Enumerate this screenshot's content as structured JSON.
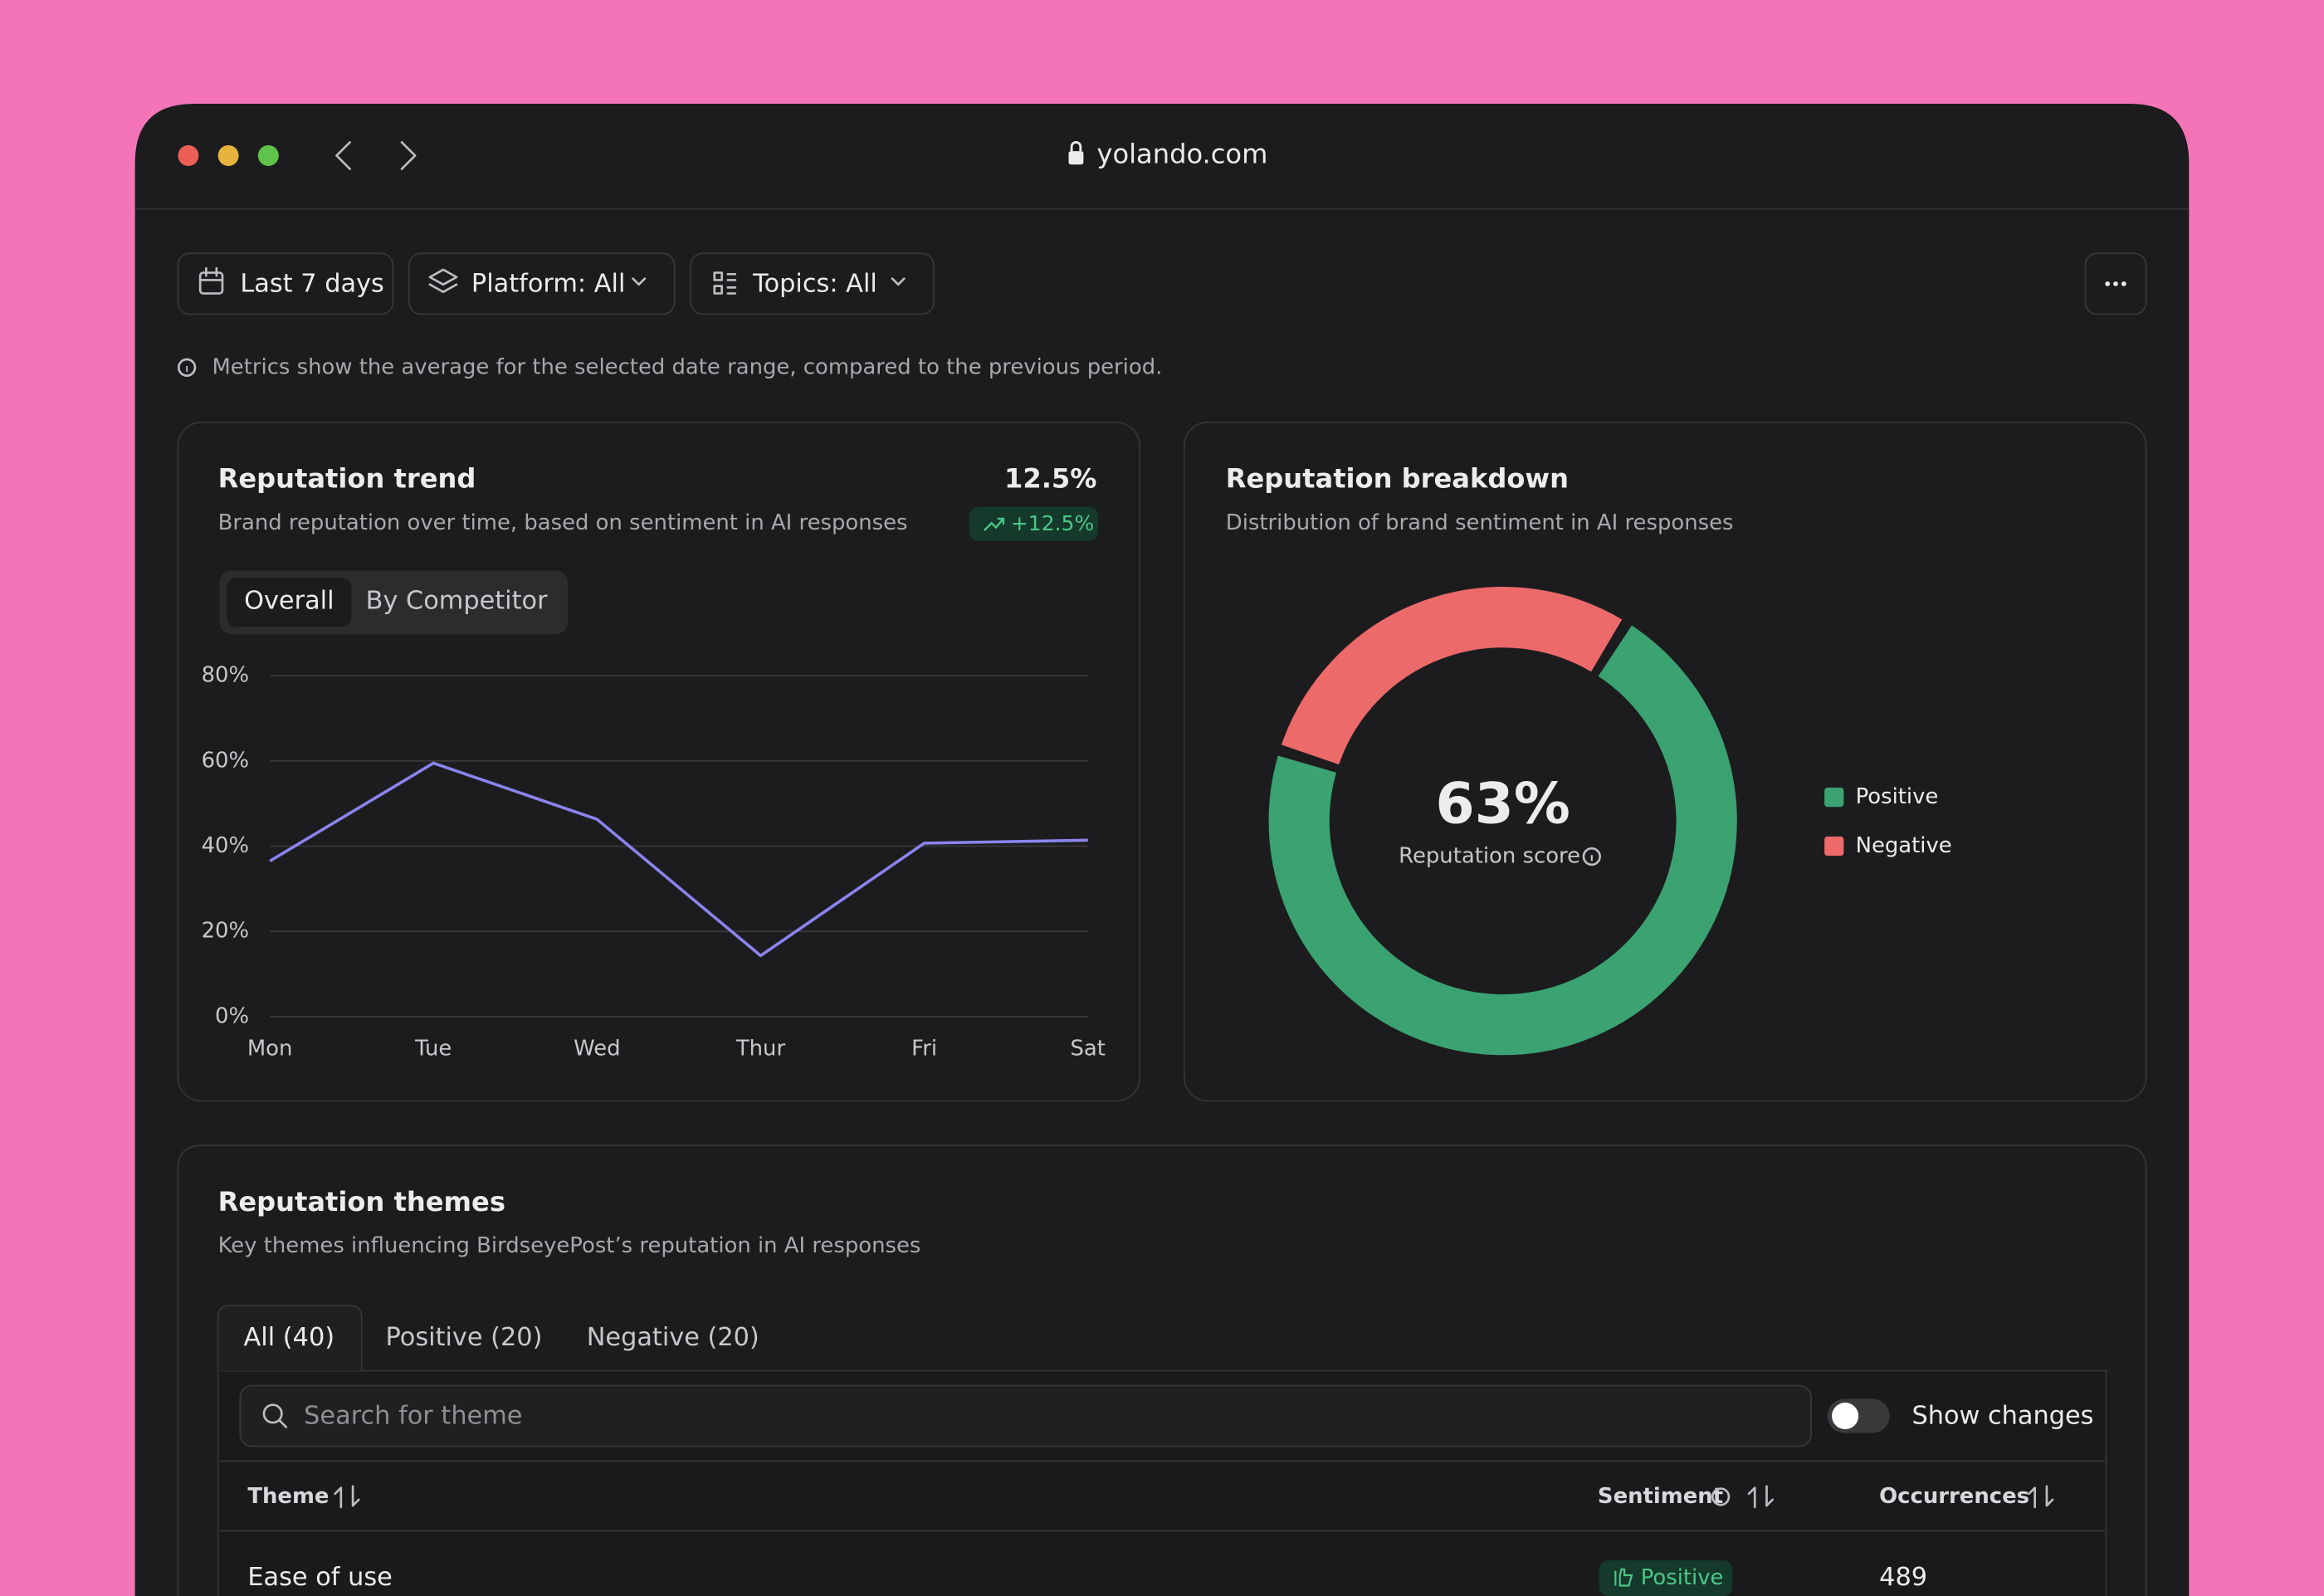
{
  "browser": {
    "url": "yolando.com"
  },
  "filters": [
    "Last 7 days",
    "Platform: All",
    "Topics: All"
  ],
  "note": "Metrics show the average for the selected date range, compared to the previous period.",
  "chart_data": [
    {
      "type": "line",
      "title": "Reputation trend",
      "subtitle": "Brand reputation over time, based on sentiment in AI responses",
      "headline": "12.5%",
      "change": "+12.5%",
      "tabs": [
        "Overall",
        "By Competitor"
      ],
      "categories": [
        "Mon",
        "Tue",
        "Wed",
        "Thur",
        "Fri",
        "Sat"
      ],
      "values": [
        36.5,
        59.5,
        46.3,
        14.3,
        40.7,
        41.4
      ],
      "color": "#8b84ee",
      "ylim": [
        0,
        80
      ],
      "yticks": [
        {
          "value": 0,
          "label": "0%"
        },
        {
          "value": 20,
          "label": "20%"
        },
        {
          "value": 40,
          "label": "40%"
        },
        {
          "value": 60,
          "label": "60%"
        },
        {
          "value": 80,
          "label": "80%"
        }
      ],
      "grid": true
    },
    {
      "type": "pie",
      "title": "Reputation breakdown",
      "subtitle": "Distribution of brand sentiment in AI responses",
      "center_value": "63%",
      "center_label": "Reputation score",
      "categories": [
        "Positive",
        "Negative"
      ],
      "values": [
        71,
        29
      ],
      "colors": [
        "#3aa371",
        "#ec6a6a"
      ],
      "legend": "right"
    }
  ],
  "themes": {
    "title": "Reputation themes",
    "subtitle": "Key themes influencing BirdseyePost’s reputation in AI responses",
    "tabs": [
      "All (40)",
      "Positive (20)",
      "Negative (20)"
    ],
    "search_placeholder": "Search for theme",
    "toggle_label": "Show changes",
    "columns": [
      "Theme",
      "Sentiment",
      "Occurrences"
    ],
    "rows": [
      [
        "Ease of use",
        "Positive",
        "489"
      ]
    ]
  }
}
